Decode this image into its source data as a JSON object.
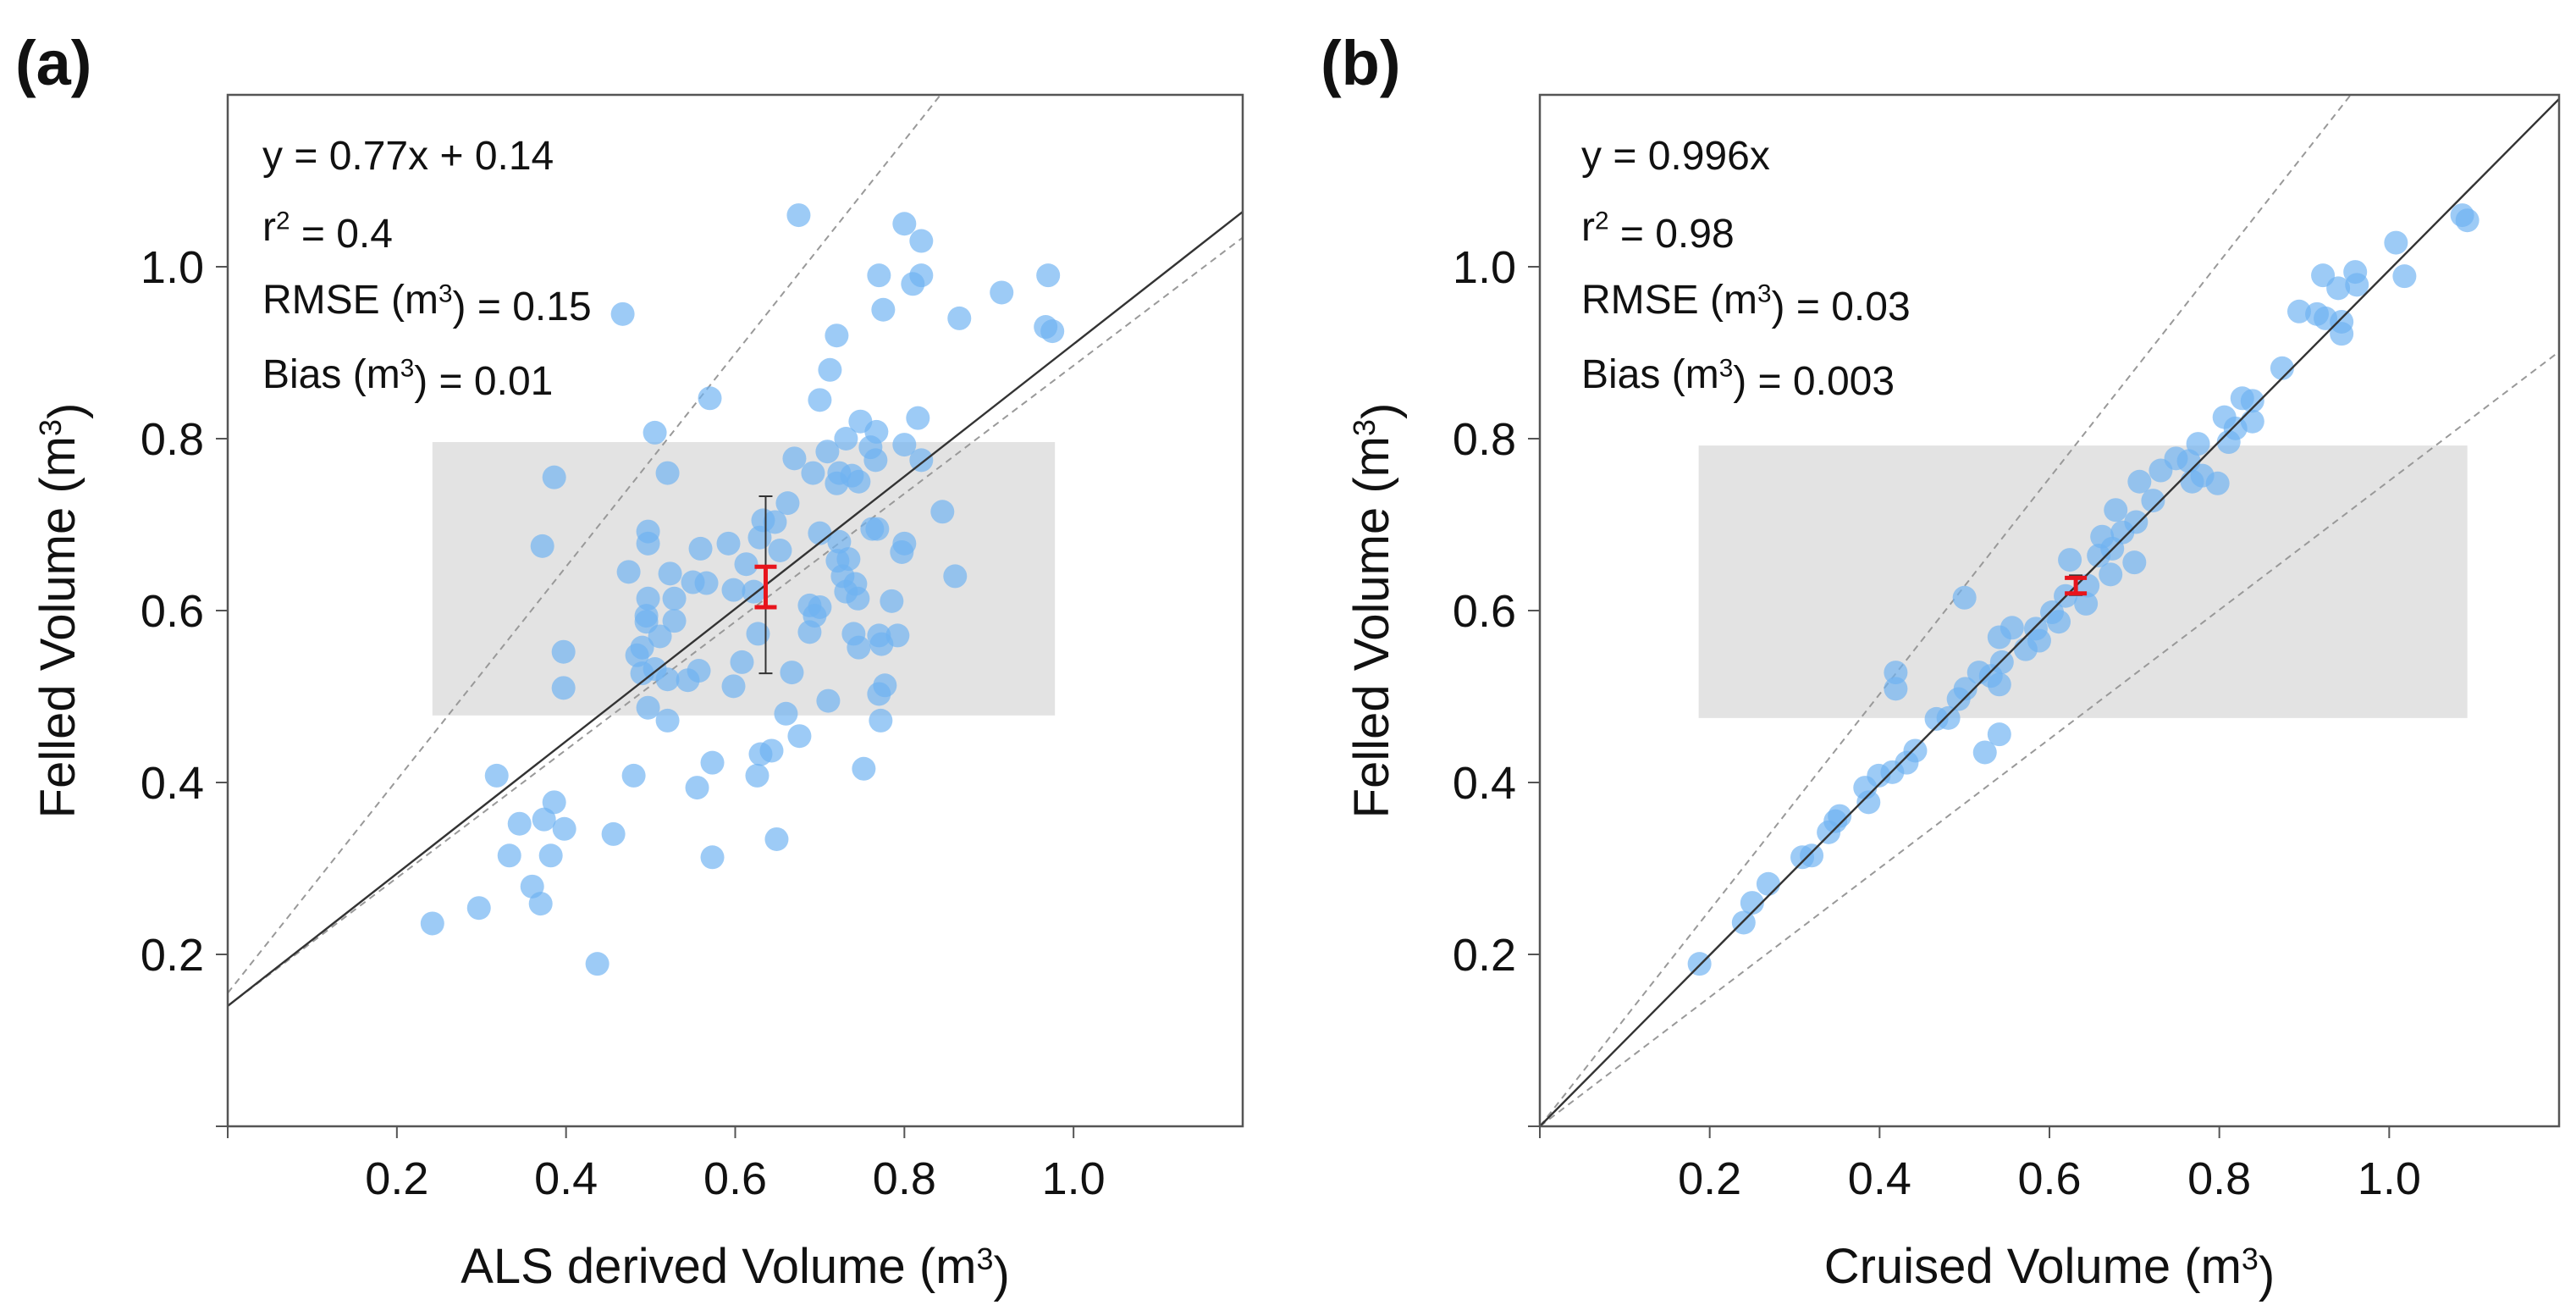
{
  "chart_data": [
    {
      "type": "scatter",
      "panel_label": "(a)",
      "xlabel": {
        "text": "ALS derived Volume (m",
        "sup": "3",
        "end": ")"
      },
      "ylabel": {
        "text": "Felled Volume (m",
        "sup": "3",
        "end": ")"
      },
      "xlim": [
        0,
        1.2
      ],
      "ylim": [
        0,
        1.2
      ],
      "xticks": [
        "0.2",
        "0.4",
        "0.6",
        "0.8",
        "1.0"
      ],
      "yticks": [
        "0.2",
        "0.4",
        "0.6",
        "0.8",
        "1.0"
      ],
      "stats": [
        {
          "pre": "y = 0.77x + 0.14",
          "sup": "",
          "post": ""
        },
        {
          "pre": "r",
          "sup": "2",
          "post": " = 0.4"
        },
        {
          "pre": "RMSE (m",
          "sup": "3",
          "post": ") = 0.15"
        },
        {
          "pre": "Bias (m",
          "sup": "3",
          "post": ") = 0.01"
        }
      ],
      "regression": {
        "slope": 0.77,
        "intercept": 0.14
      },
      "dashed_lines": [
        {
          "slope": 1.24,
          "intercept": 0.155
        },
        {
          "slope": 0.745,
          "intercept": 0.14
        }
      ],
      "shaded_range": {
        "x": [
          0.242,
          0.978
        ],
        "y": [
          0.478,
          0.796
        ]
      },
      "mean_errorbars": {
        "x": 0.636,
        "sd": [
          0.527,
          0.733
        ],
        "ci": [
          0.604,
          0.651
        ]
      },
      "colors": {
        "points": "#6fb2f2",
        "shade": "#e3e3e3",
        "ci": "#e8141c"
      },
      "points": [
        [
          0.675,
          1.06
        ],
        [
          0.8,
          1.05
        ],
        [
          0.82,
          1.03
        ],
        [
          0.77,
          0.99
        ],
        [
          0.82,
          0.99
        ],
        [
          0.81,
          0.98
        ],
        [
          0.97,
          0.99
        ],
        [
          0.915,
          0.97
        ],
        [
          0.775,
          0.95
        ],
        [
          0.865,
          0.94
        ],
        [
          0.967,
          0.93
        ],
        [
          0.975,
          0.925
        ],
        [
          0.467,
          0.945
        ],
        [
          0.72,
          0.92
        ],
        [
          0.712,
          0.88
        ],
        [
          0.57,
          0.847
        ],
        [
          0.7,
          0.845
        ],
        [
          0.816,
          0.824
        ],
        [
          0.505,
          0.807
        ],
        [
          0.748,
          0.82
        ],
        [
          0.767,
          0.808
        ],
        [
          0.731,
          0.8
        ],
        [
          0.8,
          0.793
        ],
        [
          0.709,
          0.785
        ],
        [
          0.67,
          0.777
        ],
        [
          0.76,
          0.79
        ],
        [
          0.766,
          0.775
        ],
        [
          0.82,
          0.775
        ],
        [
          0.723,
          0.76
        ],
        [
          0.738,
          0.757
        ],
        [
          0.692,
          0.76
        ],
        [
          0.72,
          0.748
        ],
        [
          0.746,
          0.75
        ],
        [
          0.52,
          0.76
        ],
        [
          0.386,
          0.755
        ],
        [
          0.845,
          0.715
        ],
        [
          0.662,
          0.725
        ],
        [
          0.633,
          0.705
        ],
        [
          0.647,
          0.703
        ],
        [
          0.372,
          0.675
        ],
        [
          0.497,
          0.692
        ],
        [
          0.497,
          0.678
        ],
        [
          0.559,
          0.672
        ],
        [
          0.592,
          0.678
        ],
        [
          0.629,
          0.685
        ],
        [
          0.653,
          0.67
        ],
        [
          0.7,
          0.69
        ],
        [
          0.723,
          0.68
        ],
        [
          0.762,
          0.695
        ],
        [
          0.768,
          0.695
        ],
        [
          0.8,
          0.678
        ],
        [
          0.797,
          0.668
        ],
        [
          0.474,
          0.645
        ],
        [
          0.523,
          0.643
        ],
        [
          0.613,
          0.654
        ],
        [
          0.721,
          0.658
        ],
        [
          0.734,
          0.66
        ],
        [
          0.727,
          0.64
        ],
        [
          0.86,
          0.64
        ],
        [
          0.55,
          0.633
        ],
        [
          0.566,
          0.632
        ],
        [
          0.598,
          0.624
        ],
        [
          0.622,
          0.622
        ],
        [
          0.742,
          0.631
        ],
        [
          0.731,
          0.622
        ],
        [
          0.745,
          0.614
        ],
        [
          0.497,
          0.614
        ],
        [
          0.528,
          0.614
        ],
        [
          0.785,
          0.611
        ],
        [
          0.688,
          0.606
        ],
        [
          0.7,
          0.604
        ],
        [
          0.694,
          0.594
        ],
        [
          0.495,
          0.594
        ],
        [
          0.495,
          0.587
        ],
        [
          0.528,
          0.588
        ],
        [
          0.627,
          0.573
        ],
        [
          0.688,
          0.575
        ],
        [
          0.74,
          0.573
        ],
        [
          0.77,
          0.571
        ],
        [
          0.792,
          0.571
        ],
        [
          0.773,
          0.561
        ],
        [
          0.746,
          0.557
        ],
        [
          0.511,
          0.57
        ],
        [
          0.49,
          0.557
        ],
        [
          0.484,
          0.548
        ],
        [
          0.397,
          0.552
        ],
        [
          0.608,
          0.54
        ],
        [
          0.505,
          0.532
        ],
        [
          0.49,
          0.527
        ],
        [
          0.52,
          0.52
        ],
        [
          0.544,
          0.519
        ],
        [
          0.557,
          0.53
        ],
        [
          0.667,
          0.528
        ],
        [
          0.397,
          0.51
        ],
        [
          0.598,
          0.512
        ],
        [
          0.777,
          0.513
        ],
        [
          0.77,
          0.503
        ],
        [
          0.497,
          0.487
        ],
        [
          0.71,
          0.495
        ],
        [
          0.66,
          0.48
        ],
        [
          0.52,
          0.472
        ],
        [
          0.772,
          0.472
        ],
        [
          0.676,
          0.454
        ],
        [
          0.643,
          0.437
        ],
        [
          0.63,
          0.433
        ],
        [
          0.573,
          0.423
        ],
        [
          0.318,
          0.408
        ],
        [
          0.48,
          0.408
        ],
        [
          0.626,
          0.408
        ],
        [
          0.752,
          0.416
        ],
        [
          0.555,
          0.394
        ],
        [
          0.386,
          0.377
        ],
        [
          0.345,
          0.352
        ],
        [
          0.374,
          0.357
        ],
        [
          0.398,
          0.346
        ],
        [
          0.456,
          0.34
        ],
        [
          0.649,
          0.334
        ],
        [
          0.333,
          0.315
        ],
        [
          0.382,
          0.315
        ],
        [
          0.573,
          0.313
        ],
        [
          0.36,
          0.279
        ],
        [
          0.37,
          0.259
        ],
        [
          0.297,
          0.254
        ],
        [
          0.242,
          0.236
        ],
        [
          0.437,
          0.189
        ]
      ]
    },
    {
      "type": "scatter",
      "panel_label": "(b)",
      "xlabel": {
        "text": "Cruised Volume (m",
        "sup": "3",
        "end": ")"
      },
      "ylabel": {
        "text": "Felled Volume (m",
        "sup": "3",
        "end": ")"
      },
      "xlim": [
        0,
        1.2
      ],
      "ylim": [
        0,
        1.2
      ],
      "xticks": [
        "0.2",
        "0.4",
        "0.6",
        "0.8",
        "1.0"
      ],
      "yticks": [
        "0.2",
        "0.4",
        "0.6",
        "0.8",
        "1.0"
      ],
      "stats": [
        {
          "pre": "y = 0.996x",
          "sup": "",
          "post": ""
        },
        {
          "pre": "r",
          "sup": "2",
          "post": " = 0.98"
        },
        {
          "pre": "RMSE (m",
          "sup": "3",
          "post": ") = 0.03"
        },
        {
          "pre": "Bias (m",
          "sup": "3",
          "post": ") = 0.003"
        }
      ],
      "regression": {
        "slope": 0.996,
        "intercept": 0
      },
      "dashed_lines": [
        {
          "slope": 1.257,
          "intercept": 0
        },
        {
          "slope": 0.751,
          "intercept": 0
        }
      ],
      "shaded_range": {
        "x": [
          0.187,
          1.092
        ],
        "y": [
          0.475,
          0.792
        ]
      },
      "mean_errorbars": {
        "x": 0.631,
        "sd": [
          0.618,
          0.641
        ],
        "ci": [
          0.62,
          0.638
        ]
      },
      "colors": {
        "points": "#6fb2f2",
        "shade": "#e3e3e3",
        "ci": "#e8141c"
      },
      "points": [
        [
          1.086,
          1.06
        ],
        [
          1.092,
          1.054
        ],
        [
          1.008,
          1.028
        ],
        [
          1.018,
          0.989
        ],
        [
          0.922,
          0.99
        ],
        [
          0.96,
          0.994
        ],
        [
          0.94,
          0.975
        ],
        [
          0.962,
          0.979
        ],
        [
          0.894,
          0.948
        ],
        [
          0.915,
          0.945
        ],
        [
          0.925,
          0.94
        ],
        [
          0.944,
          0.936
        ],
        [
          0.944,
          0.922
        ],
        [
          0.874,
          0.882
        ],
        [
          0.827,
          0.847
        ],
        [
          0.839,
          0.844
        ],
        [
          0.806,
          0.825
        ],
        [
          0.819,
          0.812
        ],
        [
          0.839,
          0.82
        ],
        [
          0.811,
          0.796
        ],
        [
          0.775,
          0.794
        ],
        [
          0.749,
          0.777
        ],
        [
          0.764,
          0.774
        ],
        [
          0.731,
          0.763
        ],
        [
          0.78,
          0.757
        ],
        [
          0.768,
          0.75
        ],
        [
          0.798,
          0.748
        ],
        [
          0.706,
          0.75
        ],
        [
          0.722,
          0.728
        ],
        [
          0.678,
          0.717
        ],
        [
          0.702,
          0.703
        ],
        [
          0.686,
          0.691
        ],
        [
          0.662,
          0.686
        ],
        [
          0.674,
          0.672
        ],
        [
          0.7,
          0.656
        ],
        [
          0.658,
          0.664
        ],
        [
          0.624,
          0.659
        ],
        [
          0.672,
          0.642
        ],
        [
          0.645,
          0.629
        ],
        [
          0.643,
          0.608
        ],
        [
          0.619,
          0.617
        ],
        [
          0.603,
          0.598
        ],
        [
          0.611,
          0.587
        ],
        [
          0.5,
          0.615
        ],
        [
          0.556,
          0.58
        ],
        [
          0.584,
          0.579
        ],
        [
          0.541,
          0.569
        ],
        [
          0.572,
          0.555
        ],
        [
          0.588,
          0.565
        ],
        [
          0.544,
          0.54
        ],
        [
          0.517,
          0.528
        ],
        [
          0.531,
          0.524
        ],
        [
          0.501,
          0.509
        ],
        [
          0.541,
          0.514
        ],
        [
          0.419,
          0.528
        ],
        [
          0.419,
          0.509
        ],
        [
          0.493,
          0.497
        ],
        [
          0.481,
          0.475
        ],
        [
          0.467,
          0.474
        ],
        [
          0.541,
          0.456
        ],
        [
          0.524,
          0.435
        ],
        [
          0.442,
          0.437
        ],
        [
          0.432,
          0.423
        ],
        [
          0.415,
          0.412
        ],
        [
          0.399,
          0.408
        ],
        [
          0.383,
          0.394
        ],
        [
          0.387,
          0.377
        ],
        [
          0.348,
          0.355
        ],
        [
          0.353,
          0.361
        ],
        [
          0.34,
          0.342
        ],
        [
          0.32,
          0.315
        ],
        [
          0.309,
          0.313
        ],
        [
          0.269,
          0.282
        ],
        [
          0.25,
          0.26
        ],
        [
          0.24,
          0.237
        ],
        [
          0.188,
          0.189
        ]
      ]
    }
  ]
}
